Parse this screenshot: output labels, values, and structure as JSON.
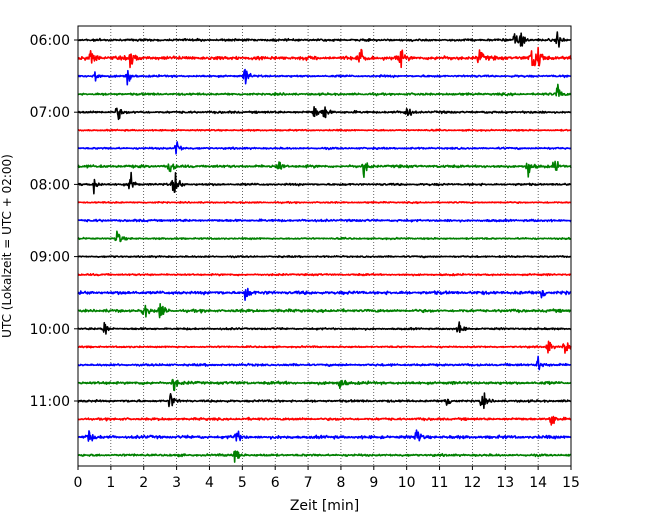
{
  "chart_data": {
    "type": "line",
    "description_kind": "helicorder seismogram",
    "xlabel": "Zeit  [min]",
    "ylabel": "UTC (Lokalzeit = UTC + 02:00)",
    "xlim": [
      0,
      15
    ],
    "x_ticks": [
      "0",
      "1",
      "2",
      "3",
      "4",
      "5",
      "6",
      "7",
      "8",
      "9",
      "10",
      "11",
      "12",
      "13",
      "14",
      "15"
    ],
    "x_grid": "vertical dotted at every minute",
    "y_ticks": [
      "06:00",
      "07:00",
      "08:00",
      "09:00",
      "10:00",
      "11:00"
    ],
    "minutes_per_line": 15,
    "colors": [
      "#000000",
      "#ff0000",
      "#0000ff",
      "#008000"
    ],
    "traces": [
      {
        "start": "06:00",
        "color": "#000000",
        "level": 0.55,
        "events": [
          13.3,
          13.5,
          14.6
        ]
      },
      {
        "start": "06:15",
        "color": "#ff0000",
        "level": 0.95,
        "events": [
          0.4,
          1.6,
          8.6,
          9.8,
          12.2,
          13.8,
          13.9,
          14.0
        ]
      },
      {
        "start": "06:30",
        "color": "#0000ff",
        "level": 0.5,
        "events": [
          0.5,
          1.5,
          5.1
        ]
      },
      {
        "start": "06:45",
        "color": "#008000",
        "level": 0.55,
        "events": [
          14.6
        ]
      },
      {
        "start": "07:00",
        "color": "#000000",
        "level": 0.55,
        "events": [
          1.2,
          7.2,
          7.5,
          10.0
        ]
      },
      {
        "start": "07:15",
        "color": "#ff0000",
        "level": 0.35,
        "events": []
      },
      {
        "start": "07:30",
        "color": "#0000ff",
        "level": 0.45,
        "events": [
          3.0
        ]
      },
      {
        "start": "07:45",
        "color": "#008000",
        "level": 0.65,
        "events": [
          2.8,
          6.1,
          8.7,
          13.7,
          14.5
        ]
      },
      {
        "start": "08:00",
        "color": "#000000",
        "level": 0.5,
        "events": [
          0.5,
          1.6,
          2.9,
          3.0
        ]
      },
      {
        "start": "08:15",
        "color": "#ff0000",
        "level": 0.35,
        "events": []
      },
      {
        "start": "08:30",
        "color": "#0000ff",
        "level": 0.55,
        "events": []
      },
      {
        "start": "08:45",
        "color": "#008000",
        "level": 0.4,
        "events": [
          1.2
        ]
      },
      {
        "start": "09:00",
        "color": "#000000",
        "level": 0.4,
        "events": []
      },
      {
        "start": "09:15",
        "color": "#ff0000",
        "level": 0.45,
        "events": []
      },
      {
        "start": "09:30",
        "color": "#0000ff",
        "level": 0.8,
        "events": [
          5.1,
          14.1
        ]
      },
      {
        "start": "09:45",
        "color": "#008000",
        "level": 0.7,
        "events": [
          2.0,
          2.5
        ]
      },
      {
        "start": "10:00",
        "color": "#000000",
        "level": 0.45,
        "events": [
          0.8,
          11.6
        ]
      },
      {
        "start": "10:15",
        "color": "#ff0000",
        "level": 0.4,
        "events": [
          14.3,
          14.8
        ]
      },
      {
        "start": "10:30",
        "color": "#0000ff",
        "level": 0.55,
        "events": [
          14.0
        ]
      },
      {
        "start": "10:45",
        "color": "#008000",
        "level": 0.7,
        "events": [
          2.9,
          8.0
        ]
      },
      {
        "start": "11:00",
        "color": "#000000",
        "level": 0.55,
        "events": [
          2.8,
          11.2,
          12.3
        ]
      },
      {
        "start": "11:15",
        "color": "#ff0000",
        "level": 0.6,
        "events": [
          14.4
        ]
      },
      {
        "start": "11:30",
        "color": "#0000ff",
        "level": 0.75,
        "events": [
          0.3,
          4.8,
          10.3
        ]
      },
      {
        "start": "11:45",
        "color": "#008000",
        "level": 0.55,
        "events": [
          4.8
        ]
      }
    ]
  }
}
